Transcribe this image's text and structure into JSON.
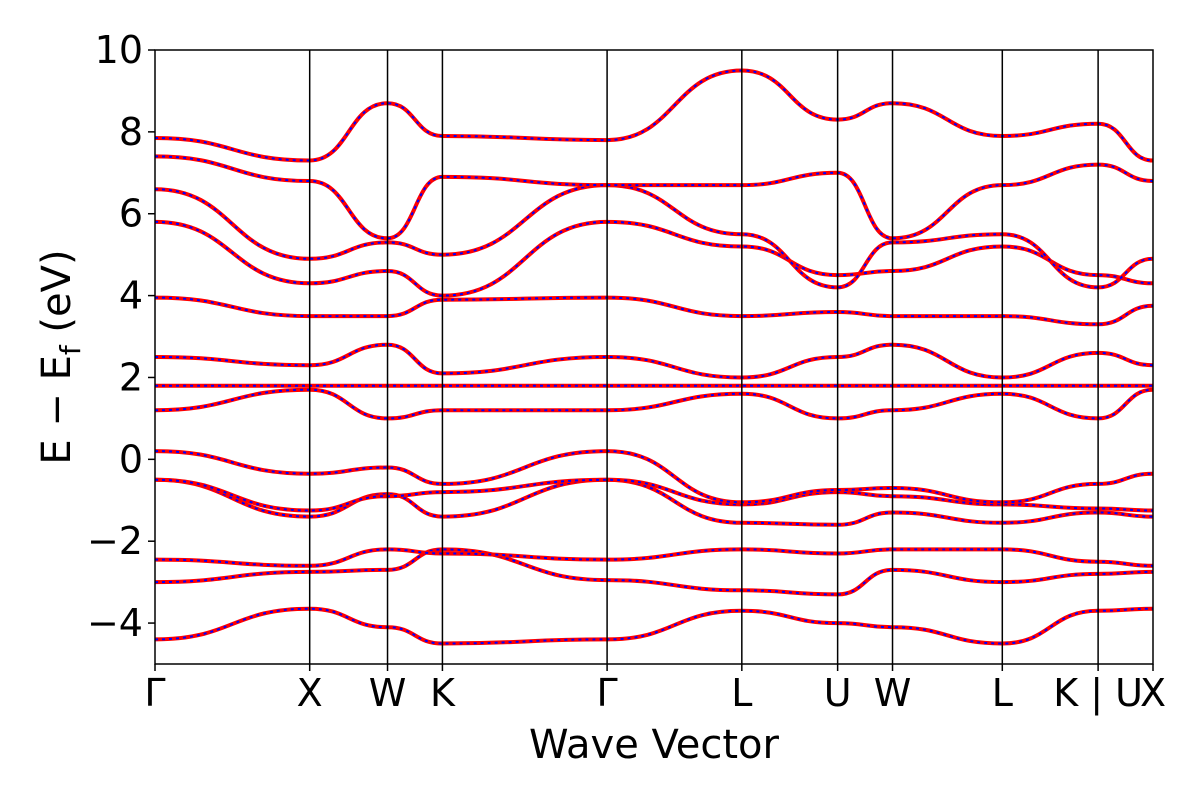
{
  "chart_data": {
    "type": "line",
    "title": "",
    "xlabel": "Wave Vector",
    "ylabel": {
      "base": "E − E",
      "sub": "f",
      "unit": " (eV)"
    },
    "ylim": [
      -5,
      10
    ],
    "yticks": [
      "−4",
      "−2",
      "0",
      "2",
      "4",
      "6",
      "8",
      "10"
    ],
    "ytick_values": [
      -4,
      -2,
      0,
      2,
      4,
      6,
      8,
      10
    ],
    "xlim": [
      0,
      1
    ],
    "kpoints": [
      {
        "label": "Γ",
        "x": 0.0
      },
      {
        "label": "X",
        "x": 0.155
      },
      {
        "label": "W",
        "x": 0.233
      },
      {
        "label": "K",
        "x": 0.288
      },
      {
        "label": "Γ",
        "x": 0.453
      },
      {
        "label": "L",
        "x": 0.588
      },
      {
        "label": "U",
        "x": 0.684
      },
      {
        "label": "W",
        "x": 0.739
      },
      {
        "label": "L",
        "x": 0.849
      },
      {
        "label": "K | U",
        "x": 0.945
      },
      {
        "label": "X",
        "x": 1.0
      }
    ],
    "series": [
      {
        "style": "solid",
        "color": "#ff0000"
      },
      {
        "style": "dotted",
        "color": "#0000ff"
      }
    ],
    "bands": [
      {
        "x": [
          0,
          0.155,
          0.233,
          0.288,
          0.453,
          0.588,
          0.684,
          0.739,
          0.849,
          0.945,
          1.0
        ],
        "y": [
          -4.4,
          -3.65,
          -4.1,
          -4.5,
          -4.4,
          -3.7,
          -4.0,
          -4.1,
          -4.5,
          -3.7,
          -3.65
        ]
      },
      {
        "x": [
          0,
          0.155,
          0.233,
          0.288,
          0.453,
          0.588,
          0.684,
          0.739,
          0.849,
          0.945,
          1.0
        ],
        "y": [
          -3.0,
          -2.75,
          -2.7,
          -2.2,
          -2.95,
          -3.2,
          -3.3,
          -2.7,
          -3.0,
          -2.8,
          -2.75
        ]
      },
      {
        "x": [
          0,
          0.155,
          0.233,
          0.288,
          0.453,
          0.588,
          0.684,
          0.739,
          0.849,
          0.945,
          1.0
        ],
        "y": [
          -2.45,
          -2.6,
          -2.2,
          -2.3,
          -2.45,
          -2.2,
          -2.3,
          -2.2,
          -2.2,
          -2.5,
          -2.6
        ]
      },
      {
        "x": [
          0,
          0.155,
          0.233,
          0.288,
          0.453,
          0.588,
          0.684,
          0.739,
          0.849,
          0.945,
          1.0
        ],
        "y": [
          -0.5,
          -1.4,
          -0.85,
          -1.4,
          -0.5,
          -1.55,
          -1.6,
          -1.3,
          -1.55,
          -1.3,
          -1.4
        ]
      },
      {
        "x": [
          0,
          0.155,
          0.233,
          0.288,
          0.453,
          0.588,
          0.684,
          0.739,
          0.849,
          0.945,
          1.0
        ],
        "y": [
          -0.5,
          -1.25,
          -0.9,
          -0.8,
          -0.5,
          -1.1,
          -0.8,
          -0.9,
          -1.1,
          -1.2,
          -1.25
        ]
      },
      {
        "x": [
          0,
          0.155,
          0.233,
          0.288,
          0.453,
          0.588,
          0.684,
          0.739,
          0.849,
          0.945,
          1.0
        ],
        "y": [
          0.2,
          -0.35,
          -0.2,
          -0.6,
          0.2,
          -1.05,
          -0.75,
          -0.7,
          -1.05,
          -0.6,
          -0.35
        ]
      },
      {
        "x": [
          0,
          0.155,
          0.233,
          0.288,
          0.453,
          0.588,
          0.684,
          0.739,
          0.849,
          0.945,
          1.0
        ],
        "y": [
          1.2,
          1.7,
          1.0,
          1.2,
          1.2,
          1.6,
          1.0,
          1.2,
          1.6,
          1.0,
          1.7
        ]
      },
      {
        "x": [
          0,
          0.155,
          0.233,
          0.288,
          0.453,
          0.588,
          0.684,
          0.739,
          0.849,
          0.945,
          1.0
        ],
        "y": [
          1.8,
          1.8,
          1.8,
          1.8,
          1.8,
          1.8,
          1.8,
          1.8,
          1.8,
          1.8,
          1.8
        ]
      },
      {
        "x": [
          0,
          0.155,
          0.233,
          0.288,
          0.453,
          0.588,
          0.684,
          0.739,
          0.849,
          0.945,
          1.0
        ],
        "y": [
          2.5,
          2.3,
          2.8,
          2.1,
          2.5,
          2.0,
          2.5,
          2.8,
          2.0,
          2.6,
          2.3
        ]
      },
      {
        "x": [
          0,
          0.155,
          0.233,
          0.288,
          0.453,
          0.588,
          0.684,
          0.739,
          0.849,
          0.945,
          1.0
        ],
        "y": [
          3.95,
          3.5,
          3.5,
          3.9,
          3.95,
          3.5,
          3.6,
          3.5,
          3.5,
          3.3,
          3.75
        ]
      },
      {
        "x": [
          0,
          0.155,
          0.233,
          0.288,
          0.453,
          0.588,
          0.684,
          0.739,
          0.849,
          0.945,
          1.0
        ],
        "y": [
          5.8,
          4.3,
          4.6,
          4.0,
          5.8,
          5.2,
          4.5,
          4.6,
          5.2,
          4.5,
          4.3
        ]
      },
      {
        "x": [
          0,
          0.155,
          0.233,
          0.288,
          0.453,
          0.588,
          0.684,
          0.739,
          0.849,
          0.945,
          1.0
        ],
        "y": [
          6.6,
          4.9,
          5.3,
          5.0,
          6.7,
          5.5,
          4.2,
          5.3,
          5.5,
          4.2,
          4.9
        ]
      },
      {
        "x": [
          0,
          0.155,
          0.233,
          0.288,
          0.453,
          0.588,
          0.684,
          0.739,
          0.849,
          0.945,
          1.0
        ],
        "y": [
          7.4,
          6.8,
          5.4,
          6.9,
          6.7,
          6.7,
          7.0,
          5.4,
          6.7,
          7.2,
          6.8
        ]
      },
      {
        "x": [
          0,
          0.155,
          0.233,
          0.288,
          0.453,
          0.588,
          0.684,
          0.739,
          0.849,
          0.945,
          1.0
        ],
        "y": [
          7.85,
          7.3,
          8.7,
          7.9,
          7.8,
          9.5,
          8.3,
          8.7,
          7.9,
          8.2,
          7.3
        ]
      }
    ]
  }
}
